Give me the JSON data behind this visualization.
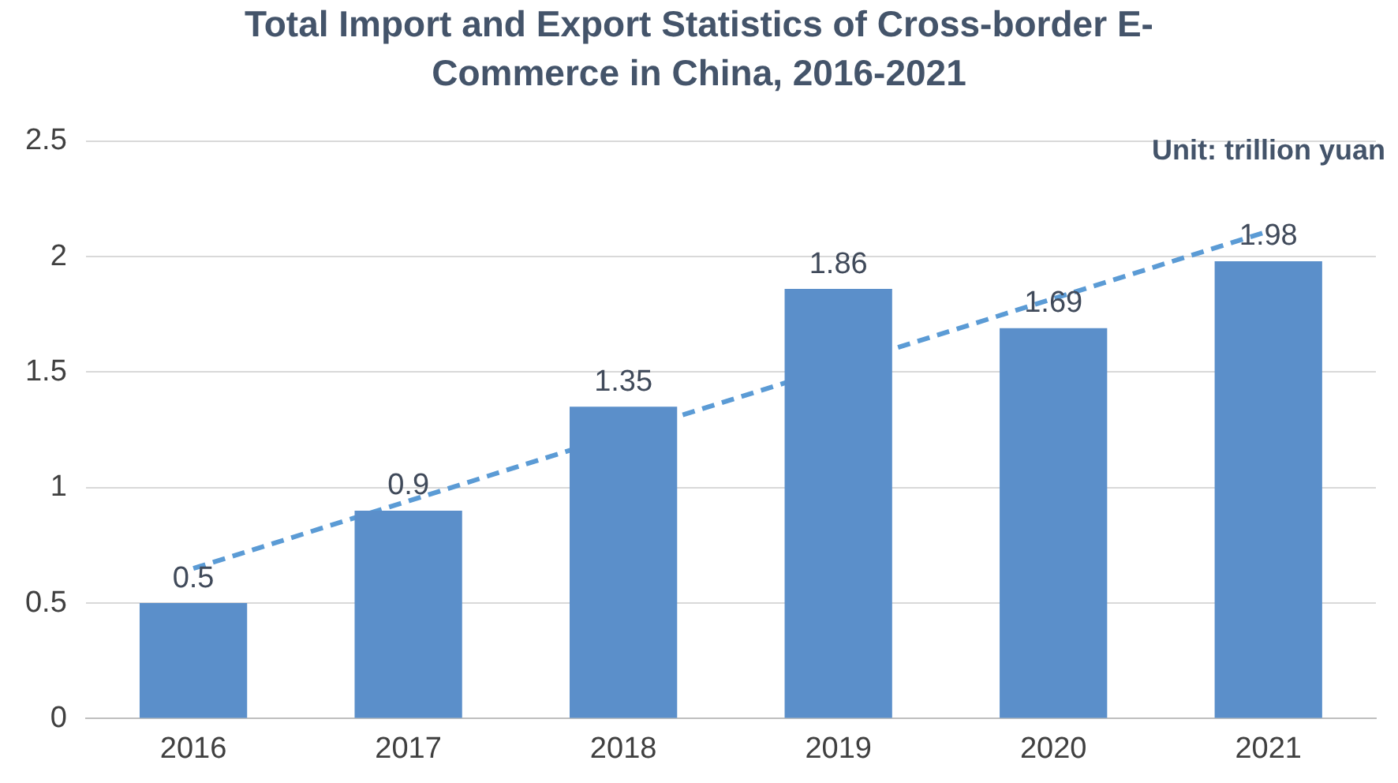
{
  "chart_data": {
    "type": "bar",
    "title": "Total Import and Export Statistics of Cross-border E-Commerce in China, 2016-2021",
    "categories": [
      "2016",
      "2017",
      "2018",
      "2019",
      "2020",
      "2021"
    ],
    "series": [
      {
        "color": "#5b8fca",
        "values": [
          0.5,
          0.9,
          1.35,
          1.86,
          1.69,
          1.98
        ],
        "value_labels": [
          "0.5",
          "0.9",
          "1.35",
          "1.86",
          "1.69",
          "1.98"
        ]
      },
      {
        "type": "line",
        "color": "#5b9bd5",
        "values": [
          0.65,
          null,
          null,
          null,
          null,
          2.11
        ],
        "line_style": "dashed",
        "marker": "none"
      }
    ],
    "ylim": [
      0,
      2.5
    ],
    "yticks": [
      0,
      0.5,
      1,
      1.5,
      2,
      2.5
    ],
    "grid": "y",
    "legend": false,
    "annotations": [
      "Unit: trillion yuan"
    ]
  }
}
